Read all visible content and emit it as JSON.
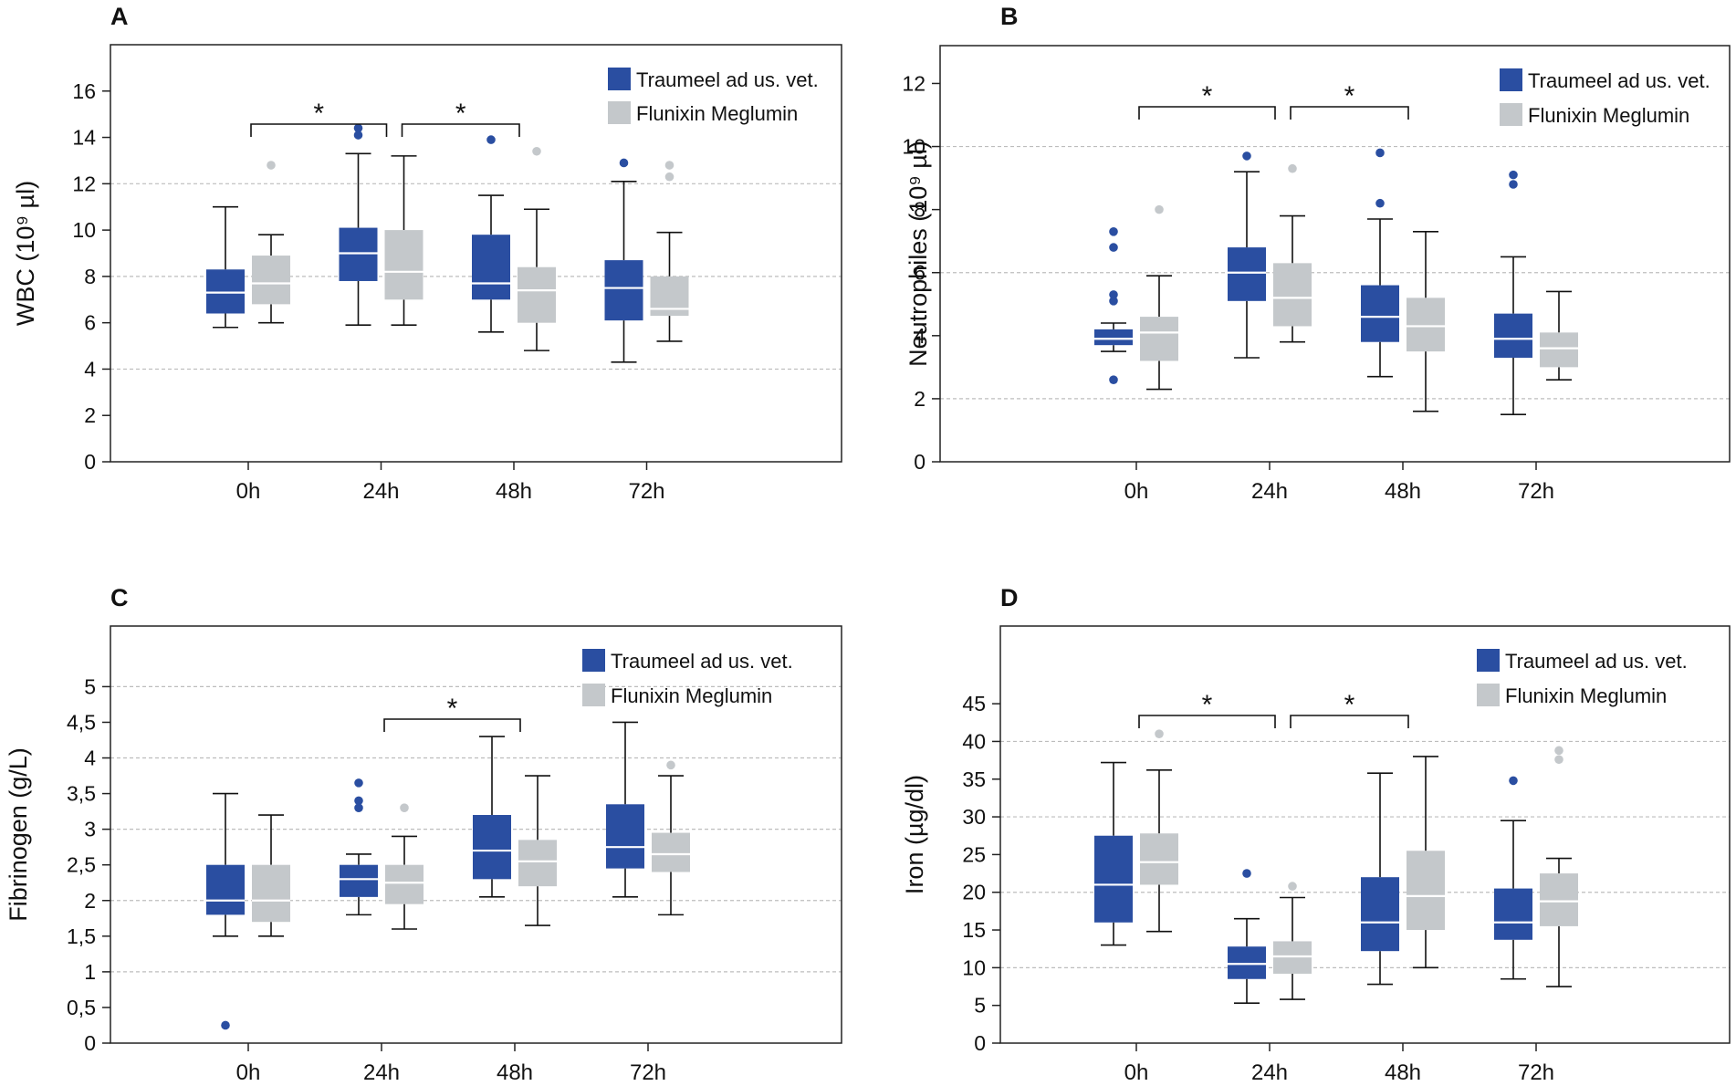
{
  "chart_data": [
    {
      "type": "box",
      "panel": "A",
      "title": "",
      "xlabel": "",
      "ylabel": "WBC (10⁹ µl)",
      "ylim": [
        0,
        18
      ],
      "yticks": [
        0,
        2,
        4,
        6,
        8,
        10,
        12,
        14,
        16
      ],
      "ytick_labels": [
        "0",
        "2",
        "4",
        "6",
        "8",
        "10",
        "12",
        "14",
        "16"
      ],
      "grid_values": [
        4,
        8,
        12
      ],
      "categories": [
        "0h",
        "24h",
        "48h",
        "72h"
      ],
      "legend": "top-right",
      "series": [
        {
          "name": "Traumeel ad us. vet.",
          "color": "#2a4ea1",
          "boxes": [
            {
              "min": 5.8,
              "q1": 6.4,
              "median": 7.3,
              "q3": 8.3,
              "max": 11.0,
              "outliers": []
            },
            {
              "min": 5.9,
              "q1": 7.8,
              "median": 9.0,
              "q3": 10.1,
              "max": 13.3,
              "outliers": [
                14.1,
                14.4
              ]
            },
            {
              "min": 5.6,
              "q1": 7.0,
              "median": 7.7,
              "q3": 9.8,
              "max": 11.5,
              "outliers": [
                13.9
              ]
            },
            {
              "min": 4.3,
              "q1": 6.1,
              "median": 7.5,
              "q3": 8.7,
              "max": 12.1,
              "outliers": [
                12.9
              ]
            }
          ]
        },
        {
          "name": "Flunixin Meglumin",
          "color": "#c4c8cb",
          "boxes": [
            {
              "min": 6.0,
              "q1": 6.8,
              "median": 7.7,
              "q3": 8.9,
              "max": 9.8,
              "outliers": [
                12.8
              ]
            },
            {
              "min": 5.9,
              "q1": 7.0,
              "median": 8.2,
              "q3": 10.0,
              "max": 13.2,
              "outliers": []
            },
            {
              "min": 4.8,
              "q1": 6.0,
              "median": 7.4,
              "q3": 8.4,
              "max": 10.9,
              "outliers": [
                13.4
              ]
            },
            {
              "min": 5.2,
              "q1": 6.3,
              "median": 6.6,
              "q3": 8.0,
              "max": 9.9,
              "outliers": [
                12.3,
                12.8
              ]
            }
          ]
        }
      ],
      "significance": [
        {
          "from": "0h",
          "to": "24h",
          "label": "*"
        },
        {
          "from": "24h",
          "to": "48h",
          "label": "*"
        }
      ]
    },
    {
      "type": "box",
      "panel": "B",
      "title": "",
      "xlabel": "",
      "ylabel": "Neutrophiles (10⁹ µl)",
      "ylim": [
        0,
        13.2
      ],
      "yticks": [
        0,
        2,
        4,
        6,
        8,
        10,
        12
      ],
      "ytick_labels": [
        "0",
        "2",
        "4",
        "6",
        "8",
        "10",
        "12"
      ],
      "grid_values": [
        2,
        6,
        10
      ],
      "categories": [
        "0h",
        "24h",
        "48h",
        "72h"
      ],
      "legend": "top-right",
      "series": [
        {
          "name": "Traumeel ad us. vet.",
          "color": "#2a4ea1",
          "boxes": [
            {
              "min": 3.5,
              "q1": 3.7,
              "median": 3.9,
              "q3": 4.2,
              "max": 4.4,
              "outliers": [
                2.6,
                5.1,
                5.3,
                6.8,
                7.3
              ]
            },
            {
              "min": 3.3,
              "q1": 5.1,
              "median": 6.0,
              "q3": 6.8,
              "max": 9.2,
              "outliers": [
                9.7
              ]
            },
            {
              "min": 2.7,
              "q1": 3.8,
              "median": 4.6,
              "q3": 5.6,
              "max": 7.7,
              "outliers": [
                8.2,
                9.8
              ]
            },
            {
              "min": 1.5,
              "q1": 3.3,
              "median": 3.9,
              "q3": 4.7,
              "max": 6.5,
              "outliers": [
                8.8,
                9.1
              ]
            }
          ]
        },
        {
          "name": "Flunixin Meglumin",
          "color": "#c4c8cb",
          "boxes": [
            {
              "min": 2.3,
              "q1": 3.2,
              "median": 4.1,
              "q3": 4.6,
              "max": 5.9,
              "outliers": [
                8.0
              ]
            },
            {
              "min": 3.8,
              "q1": 4.3,
              "median": 5.2,
              "q3": 6.3,
              "max": 7.8,
              "outliers": [
                9.3
              ]
            },
            {
              "min": 1.6,
              "q1": 3.5,
              "median": 4.3,
              "q3": 5.2,
              "max": 7.3,
              "outliers": []
            },
            {
              "min": 2.6,
              "q1": 3.0,
              "median": 3.6,
              "q3": 4.1,
              "max": 5.4,
              "outliers": []
            }
          ]
        }
      ],
      "significance": [
        {
          "from": "0h",
          "to": "24h",
          "label": "*"
        },
        {
          "from": "24h",
          "to": "48h",
          "label": "*"
        }
      ]
    },
    {
      "type": "box",
      "panel": "C",
      "title": "",
      "xlabel": "",
      "ylabel": "Fibrinogen (g/L)",
      "ylim": [
        0,
        5.85
      ],
      "yticks": [
        0,
        0.5,
        1,
        1.5,
        2,
        2.5,
        3,
        3.5,
        4,
        4.5,
        5
      ],
      "ytick_labels": [
        "0",
        "0,5",
        "1",
        "1,5",
        "2",
        "2,5",
        "3",
        "3,5",
        "4",
        "4,5",
        "5"
      ],
      "grid_values": [
        1,
        2,
        3,
        4,
        5
      ],
      "categories": [
        "0h",
        "24h",
        "48h",
        "72h"
      ],
      "legend": "top-right",
      "series": [
        {
          "name": "Traumeel ad us. vet.",
          "color": "#2a4ea1",
          "boxes": [
            {
              "min": 1.5,
              "q1": 1.8,
              "median": 2.0,
              "q3": 2.5,
              "max": 3.5,
              "outliers": [
                0.25
              ]
            },
            {
              "min": 1.8,
              "q1": 2.05,
              "median": 2.3,
              "q3": 2.5,
              "max": 2.65,
              "outliers": [
                3.3,
                3.4,
                3.65
              ]
            },
            {
              "min": 2.05,
              "q1": 2.3,
              "median": 2.7,
              "q3": 3.2,
              "max": 4.3,
              "outliers": []
            },
            {
              "min": 2.05,
              "q1": 2.45,
              "median": 2.75,
              "q3": 3.35,
              "max": 4.5,
              "outliers": []
            }
          ]
        },
        {
          "name": "Flunixin Meglumin",
          "color": "#c4c8cb",
          "boxes": [
            {
              "min": 1.5,
              "q1": 1.7,
              "median": 2.0,
              "q3": 2.5,
              "max": 3.2,
              "outliers": []
            },
            {
              "min": 1.6,
              "q1": 1.95,
              "median": 2.25,
              "q3": 2.5,
              "max": 2.9,
              "outliers": [
                3.3
              ]
            },
            {
              "min": 1.65,
              "q1": 2.2,
              "median": 2.55,
              "q3": 2.85,
              "max": 3.75,
              "outliers": []
            },
            {
              "min": 1.8,
              "q1": 2.4,
              "median": 2.65,
              "q3": 2.95,
              "max": 3.75,
              "outliers": [
                3.9
              ]
            }
          ]
        }
      ],
      "significance": [
        {
          "from": "24h",
          "to": "48h",
          "label": "*"
        }
      ]
    },
    {
      "type": "box",
      "panel": "D",
      "title": "",
      "xlabel": "",
      "ylabel": "Iron (µg/dl)",
      "ylim": [
        0,
        55.3
      ],
      "yticks": [
        0,
        5,
        10,
        15,
        20,
        25,
        30,
        35,
        40,
        45
      ],
      "ytick_labels": [
        "0",
        "5",
        "10",
        "15",
        "20",
        "25",
        "30",
        "35",
        "40",
        "45"
      ],
      "grid_values": [
        10,
        20,
        30,
        40
      ],
      "categories": [
        "0h",
        "24h",
        "48h",
        "72h"
      ],
      "legend": "top-right",
      "series": [
        {
          "name": "Traumeel ad us. vet.",
          "color": "#2a4ea1",
          "boxes": [
            {
              "min": 13.0,
              "q1": 16.0,
              "median": 21.0,
              "q3": 27.5,
              "max": 37.2,
              "outliers": []
            },
            {
              "min": 5.3,
              "q1": 8.5,
              "median": 10.5,
              "q3": 12.8,
              "max": 16.5,
              "outliers": [
                22.5
              ]
            },
            {
              "min": 7.8,
              "q1": 12.2,
              "median": 16.0,
              "q3": 22.0,
              "max": 35.8,
              "outliers": []
            },
            {
              "min": 8.5,
              "q1": 13.7,
              "median": 16.0,
              "q3": 20.5,
              "max": 29.5,
              "outliers": [
                34.8
              ]
            }
          ]
        },
        {
          "name": "Flunixin Meglumin",
          "color": "#c4c8cb",
          "boxes": [
            {
              "min": 14.8,
              "q1": 21.0,
              "median": 24.0,
              "q3": 27.8,
              "max": 36.2,
              "outliers": [
                41.0
              ]
            },
            {
              "min": 5.8,
              "q1": 9.2,
              "median": 11.5,
              "q3": 13.5,
              "max": 19.3,
              "outliers": [
                20.8
              ]
            },
            {
              "min": 10.0,
              "q1": 15.0,
              "median": 19.5,
              "q3": 25.5,
              "max": 38.0,
              "outliers": []
            },
            {
              "min": 7.5,
              "q1": 15.5,
              "median": 18.8,
              "q3": 22.5,
              "max": 24.5,
              "outliers": [
                37.6,
                38.8
              ]
            }
          ]
        }
      ],
      "significance": [
        {
          "from": "0h",
          "to": "24h",
          "label": "*"
        },
        {
          "from": "24h",
          "to": "48h",
          "label": "*"
        }
      ]
    }
  ]
}
